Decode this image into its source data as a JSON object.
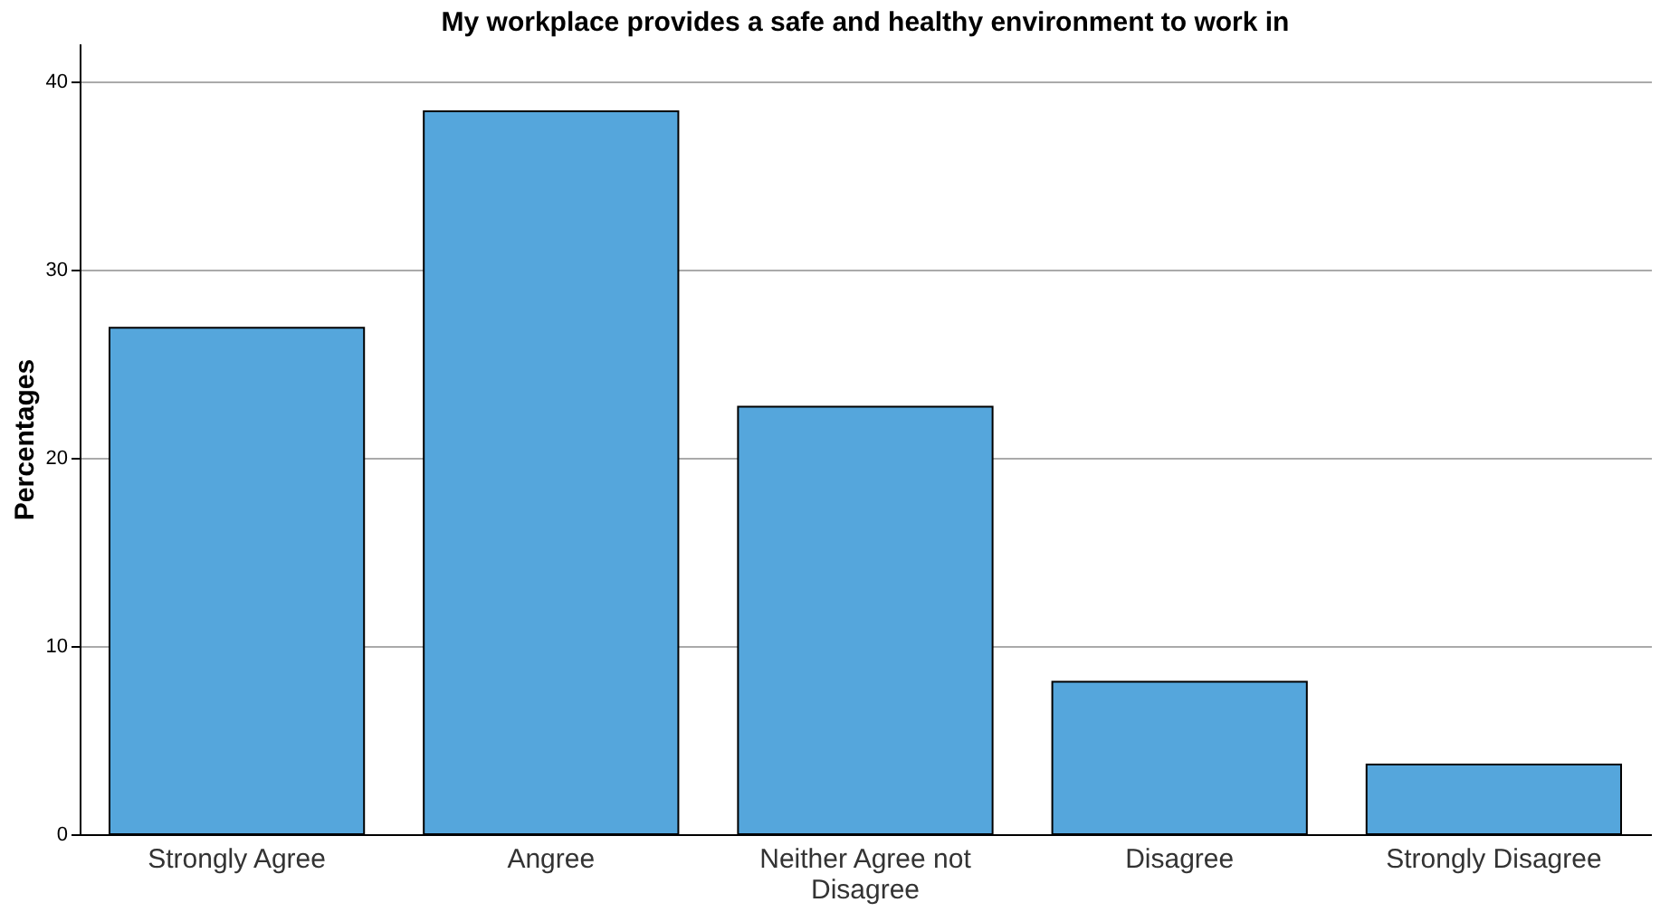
{
  "chart_data": {
    "type": "bar",
    "title": "My workplace provides a safe and healthy environment to work in",
    "ylabel": "Percentages",
    "categories": [
      "Strongly Agree",
      "Angree",
      "Neither Agree not Disagree",
      "Disagree",
      "Strongly Disagree"
    ],
    "values": [
      26.9,
      38.4,
      22.7,
      8.1,
      3.7
    ],
    "color": "#55a6dc",
    "ylim": [
      0,
      42
    ],
    "yticks": [
      0,
      10,
      20,
      30,
      40
    ],
    "grid": "y"
  }
}
